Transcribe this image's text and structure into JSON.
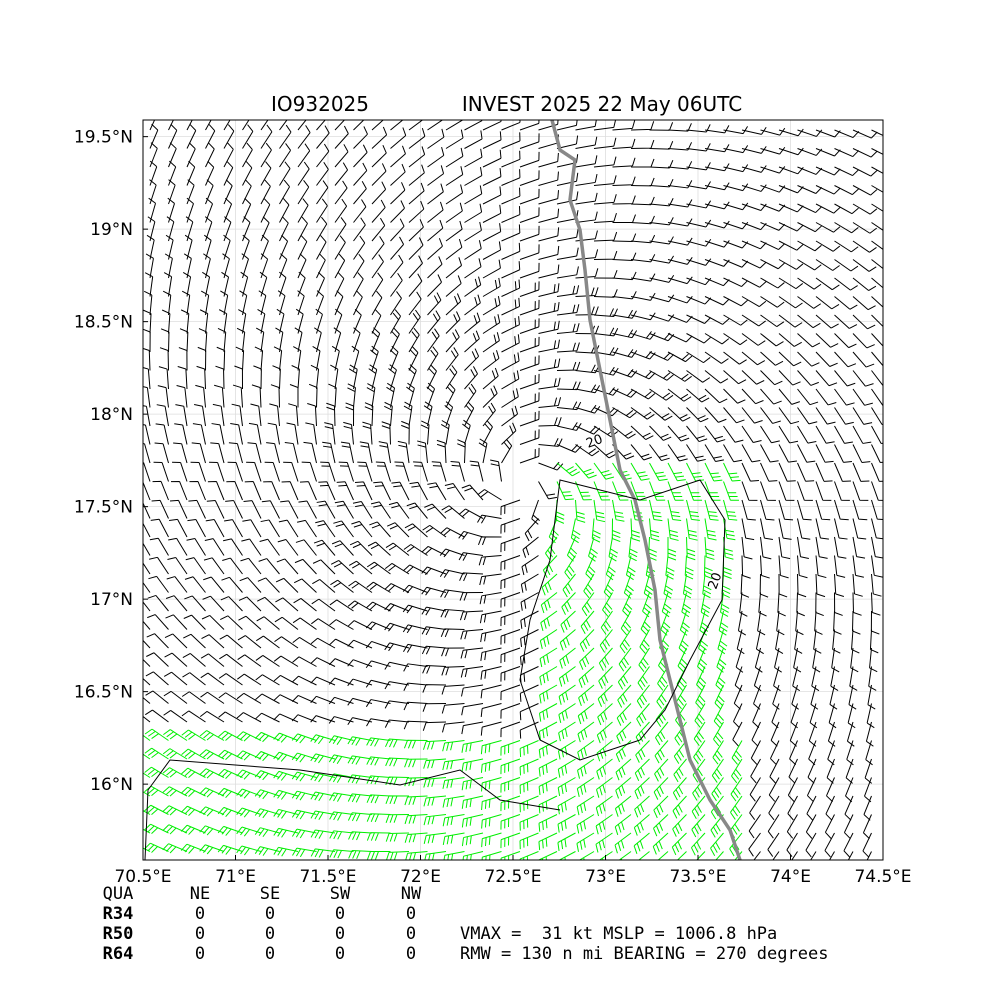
{
  "title_left": "IO932025",
  "title_right": "INVEST 2025 22 May 06UTC",
  "map": {
    "xlim": [
      70.5,
      74.5
    ],
    "ylim": [
      15.59,
      19.59
    ],
    "xticks": [
      {
        "value": 70.5,
        "label": "70.5°E"
      },
      {
        "value": 71,
        "label": "71°E"
      },
      {
        "value": 71.5,
        "label": "71.5°E"
      },
      {
        "value": 72,
        "label": "72°E"
      },
      {
        "value": 72.5,
        "label": "72.5°E"
      },
      {
        "value": 73,
        "label": "73°E"
      },
      {
        "value": 73.5,
        "label": "73.5°E"
      },
      {
        "value": 74,
        "label": "74°E"
      },
      {
        "value": 74.5,
        "label": "74.5°E"
      }
    ],
    "yticks": [
      {
        "value": 16,
        "label": "16°N"
      },
      {
        "value": 16.5,
        "label": "16.5°N"
      },
      {
        "value": 17,
        "label": "17°N"
      },
      {
        "value": 17.5,
        "label": "17.5°N"
      },
      {
        "value": 18,
        "label": "18°N"
      },
      {
        "value": 18.5,
        "label": "18.5°N"
      },
      {
        "value": 19,
        "label": "19°N"
      },
      {
        "value": 19.5,
        "label": "19.5°N"
      }
    ],
    "contour_labels": [
      "20",
      "20"
    ]
  },
  "table": {
    "header": [
      "QUA",
      "NE",
      "SE",
      "SW",
      "NW"
    ],
    "rows": [
      [
        "R34",
        0,
        0,
        0,
        0
      ],
      [
        "R50",
        0,
        0,
        0,
        0
      ],
      [
        "R64",
        0,
        0,
        0,
        0
      ]
    ]
  },
  "info": [
    "VMAX =  31 kt MSLP = 1006.8 hPa",
    "RMW = 130 n mi BEARING = 270 degrees"
  ]
}
